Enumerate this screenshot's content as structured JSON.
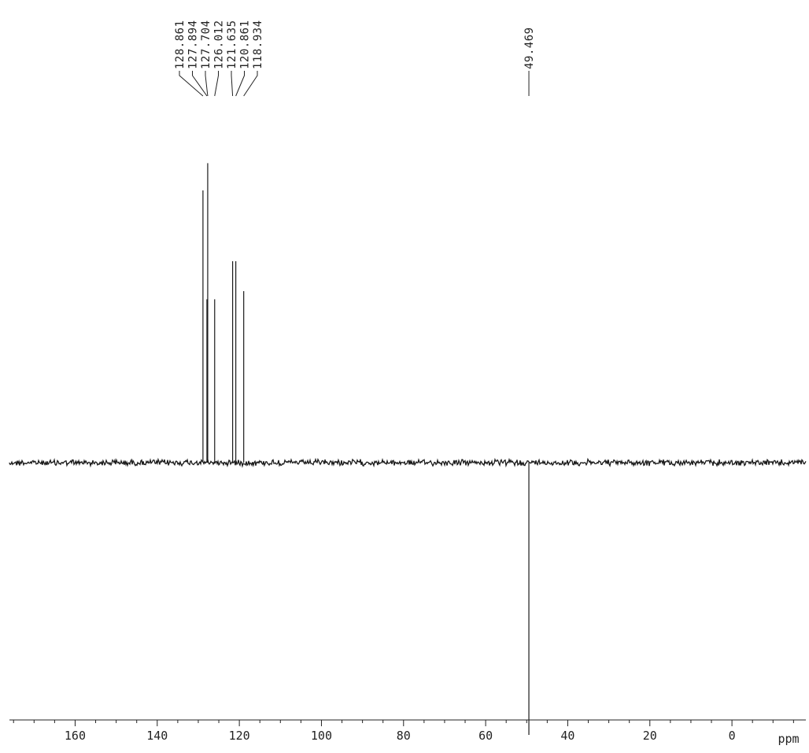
{
  "chart_data": {
    "type": "line",
    "title": "",
    "xlabel": "ppm",
    "ylabel": "",
    "x_reversed": true,
    "xlim": [
      176,
      -18
    ],
    "ylim": [
      -1.0,
      1.3
    ],
    "grid": false,
    "x_ticks": [
      160,
      140,
      120,
      100,
      80,
      60,
      40,
      20,
      0
    ],
    "x_tick_labels": [
      "160",
      "140",
      "120",
      "100",
      "80",
      "60",
      "40",
      "20",
      "0"
    ],
    "peaks": [
      {
        "label": "128.861",
        "ppm": 128.861,
        "intensity": 1.0
      },
      {
        "label": "127.894",
        "ppm": 127.894,
        "intensity": 0.6
      },
      {
        "label": "127.704",
        "ppm": 127.704,
        "intensity": 1.1
      },
      {
        "label": "126.012",
        "ppm": 126.012,
        "intensity": 0.6
      },
      {
        "label": "121.635",
        "ppm": 121.635,
        "intensity": 0.74
      },
      {
        "label": "120.861",
        "ppm": 120.861,
        "intensity": 0.74
      },
      {
        "label": "118.934",
        "ppm": 118.934,
        "intensity": 0.63
      },
      {
        "label": "49.469",
        "ppm": 49.469,
        "intensity": -1.0
      }
    ],
    "colors": {
      "trace": "#1a1a1a",
      "axis": "#222222"
    }
  }
}
